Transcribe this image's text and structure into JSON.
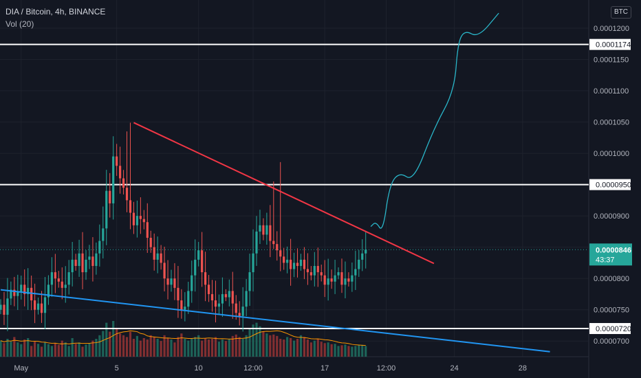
{
  "header": {
    "symbol_line": "DIA / Bitcoin, 4h, BINANCE",
    "indicator_line": "Vol (20)",
    "currency_badge": "BTC"
  },
  "colors": {
    "background": "#131722",
    "grid": "#1e222d",
    "up": "#26a69a",
    "down": "#ef5350",
    "resistance_line": "#f23645",
    "support_line": "#2196f3",
    "projection": "#2ab7ca",
    "price_badge": "#26a69a",
    "vol_ma": "#ff9800"
  },
  "chart_data": {
    "type": "candlestick",
    "symbol": "DIA / Bitcoin",
    "timeframe": "4h",
    "exchange": "BINANCE",
    "y_axis": {
      "range": [
        6.75e-05,
        0.0001245
      ],
      "ticks": [
        "0.0001200",
        "0.0001150",
        "0.0001100",
        "0.0001050",
        "0.0001000",
        "0.0000950",
        "0.0000900",
        "0.0000850",
        "0.0000800",
        "0.0000750",
        "0.0000700"
      ],
      "tick_values": [
        0.00012,
        0.000115,
        0.00011,
        0.000105,
        0.0001,
        9.5e-05,
        9e-05,
        8.5e-05,
        8e-05,
        7.5e-05,
        7e-05
      ]
    },
    "x_axis": {
      "labels": [
        "May",
        "5",
        "10",
        "12:00",
        "17",
        "12:00",
        "24",
        "28"
      ],
      "bar_index": [
        6,
        34,
        58,
        74,
        95,
        113,
        133,
        153
      ]
    },
    "bar_count": 108,
    "current_price": "0.0000846",
    "countdown": "43:37",
    "horizontal_levels": [
      {
        "value": 0.0001174,
        "label": "0.0001174"
      },
      {
        "value": 9.5e-05,
        "label": "0.0000950"
      },
      {
        "value": 7.2e-05,
        "label": "0.0000720"
      }
    ],
    "trendlines": [
      {
        "name": "descending resistance",
        "from": {
          "bar": 39,
          "price": 0.0001049
        },
        "to": {
          "bar": 127,
          "price": 8.24e-05
        }
      },
      {
        "name": "descending support",
        "from": {
          "bar": 0,
          "price": 7.82e-05
        },
        "to": {
          "bar": 161,
          "price": 6.83e-05
        }
      }
    ],
    "projection_path": [
      {
        "bar": 108.5,
        "price": 8.83e-05
      },
      {
        "bar": 110,
        "price": 8.91e-05
      },
      {
        "bar": 112,
        "price": 8.73e-05
      },
      {
        "bar": 114,
        "price": 9.5e-05
      },
      {
        "bar": 117,
        "price": 9.7e-05
      },
      {
        "bar": 121,
        "price": 9.55e-05
      },
      {
        "bar": 127,
        "price": 0.000104
      },
      {
        "bar": 133,
        "price": 0.00011
      },
      {
        "bar": 134,
        "price": 0.0001176
      },
      {
        "bar": 136,
        "price": 0.0001197
      },
      {
        "bar": 140,
        "price": 0.0001185
      },
      {
        "bar": 146,
        "price": 0.0001224
      }
    ],
    "closes": [
      7.58e-05,
      7.42e-05,
      7.68e-05,
      7.82e-05,
      7.72e-05,
      7.78e-05,
      7.9e-05,
      7.75e-05,
      7.85e-05,
      7.65e-05,
      7.5e-05,
      7.6e-05,
      7.45e-05,
      7.7e-05,
      7.9e-05,
      8.1e-05,
      8e-05,
      7.95e-05,
      7.85e-05,
      7.9e-05,
      8.1e-05,
      8.3e-05,
      8.2e-05,
      8.4e-05,
      8.1e-05,
      8.3e-05,
      8.35e-05,
      8.2e-05,
      8.4e-05,
      8.6e-05,
      8.8e-05,
      9.4e-05,
      9.2e-05,
      9.95e-05,
      9.8e-05,
      9.6e-05,
      9.45e-05,
      9.25e-05,
      9.05e-05,
      8.85e-05,
      9e-05,
      8.95e-05,
      8.9e-05,
      8.65e-05,
      8.5e-05,
      8.3e-05,
      8.4e-05,
      8.25e-05,
      8e-05,
      7.9e-05,
      8e-05,
      7.85e-05,
      7.65e-05,
      7.5e-05,
      7.55e-05,
      7.8e-05,
      8.05e-05,
      8.3e-05,
      8.45e-05,
      8.1e-05,
      7.9e-05,
      7.75e-05,
      7.65e-05,
      7.55e-05,
      7.6e-05,
      7.75e-05,
      7.7e-05,
      7.8e-05,
      7.6e-05,
      7.45e-05,
      7.4e-05,
      7.55e-05,
      7.8e-05,
      8.1e-05,
      8.4e-05,
      8.75e-05,
      8.85e-05,
      8.7e-05,
      8.85e-05,
      8.6e-05,
      8.55e-05,
      8.45e-05,
      8.35e-05,
      8.25e-05,
      8.3e-05,
      8.15e-05,
      8.25e-05,
      8.2e-05,
      8.3e-05,
      8.15e-05,
      8.1e-05,
      8.05e-05,
      8.2e-05,
      8.1e-05,
      8.05e-05,
      7.9e-05,
      8e-05,
      7.95e-05,
      8.05e-05,
      8.1e-05,
      7.9e-05,
      8e-05,
      7.95e-05,
      8.05e-05,
      8.15e-05,
      8.3e-05,
      8.4e-05,
      8.46e-05
    ],
    "volume_relative": [
      0.45,
      0.38,
      0.5,
      0.42,
      0.55,
      0.4,
      0.35,
      0.48,
      0.52,
      0.3,
      0.42,
      0.36,
      0.28,
      0.4,
      0.35,
      0.3,
      0.38,
      0.33,
      0.45,
      0.4,
      0.3,
      0.52,
      0.36,
      0.4,
      0.28,
      0.34,
      0.38,
      0.45,
      0.5,
      0.6,
      0.72,
      0.95,
      0.7,
      1.0,
      0.78,
      0.65,
      0.6,
      0.55,
      0.7,
      0.5,
      0.58,
      0.45,
      0.52,
      0.48,
      0.6,
      0.55,
      0.5,
      0.44,
      0.6,
      0.52,
      0.48,
      0.4,
      0.55,
      0.65,
      0.5,
      0.45,
      0.5,
      0.55,
      0.6,
      0.45,
      0.52,
      0.48,
      0.5,
      0.55,
      0.42,
      0.48,
      0.44,
      0.5,
      0.58,
      0.62,
      0.55,
      0.5,
      0.6,
      0.8,
      0.9,
      0.95,
      0.85,
      0.7,
      0.65,
      0.6,
      0.62,
      0.58,
      0.5,
      0.48,
      0.55,
      0.52,
      0.45,
      0.5,
      0.6,
      0.55,
      0.48,
      0.4,
      0.45,
      0.5,
      0.42,
      0.38,
      0.4,
      0.35,
      0.36,
      0.3,
      0.32,
      0.34,
      0.3,
      0.28,
      0.3,
      0.32,
      0.33,
      0.3
    ]
  }
}
